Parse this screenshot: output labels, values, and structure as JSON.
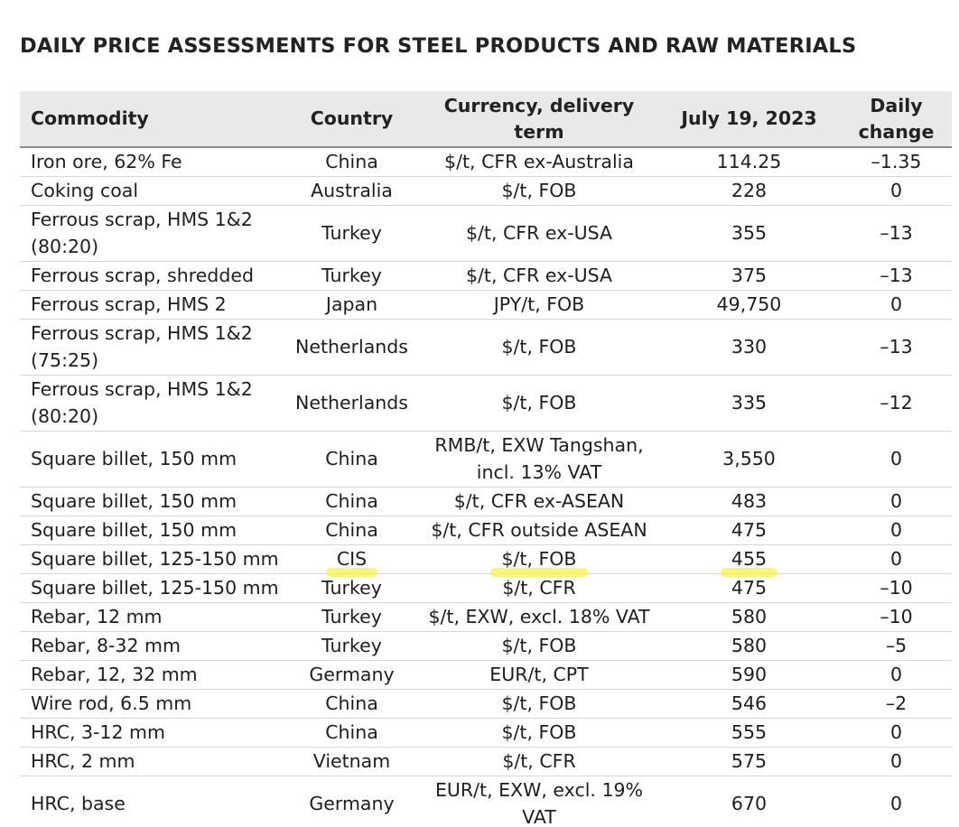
{
  "title": "DAILY PRICE ASSESSMENTS FOR STEEL PRODUCTS AND RAW MATERIALS",
  "highlight_color": "#f7f250",
  "header": {
    "commodity": "Commodity",
    "country": "Country",
    "currency": "Currency, delivery term",
    "date": "July 19, 2023",
    "change": "Daily change"
  },
  "rows": [
    {
      "commodity": "Iron ore, 62% Fe",
      "country": "China",
      "currency": "$/t, CFR ex-Australia",
      "price": "114.25",
      "change": "–1.35"
    },
    {
      "commodity": "Coking coal",
      "country": "Australia",
      "currency": "$/t, FOB",
      "price": "228",
      "change": "0"
    },
    {
      "commodity": "Ferrous scrap, HMS 1&2 (80:20)",
      "country": "Turkey",
      "currency": "$/t, CFR ex-USA",
      "price": "355",
      "change": "–13"
    },
    {
      "commodity": "Ferrous scrap, shredded",
      "country": "Turkey",
      "currency": "$/t, CFR ex-USA",
      "price": "375",
      "change": "–13"
    },
    {
      "commodity": "Ferrous scrap, HMS 2",
      "country": "Japan",
      "currency": "JPY/t, FOB",
      "price": "49,750",
      "change": "0"
    },
    {
      "commodity": "Ferrous scrap, HMS 1&2 (75:25)",
      "country": "Netherlands",
      "currency": "$/t, FOB",
      "price": "330",
      "change": "–13"
    },
    {
      "commodity": "Ferrous scrap, HMS 1&2 (80:20)",
      "country": "Netherlands",
      "currency": "$/t, FOB",
      "price": "335",
      "change": "–12"
    },
    {
      "commodity": "Square billet, 150 mm",
      "country": "China",
      "currency": "RMB/t, EXW Tangshan, incl. 13% VAT",
      "price": "3,550",
      "change": "0"
    },
    {
      "commodity": "Square billet, 150 mm",
      "country": "China",
      "currency": "$/t, CFR ex-ASEAN",
      "price": "483",
      "change": "0"
    },
    {
      "commodity": "Square billet, 150 mm",
      "country": "China",
      "currency": "$/t, CFR outside ASEAN",
      "price": "475",
      "change": "0"
    },
    {
      "commodity": "Square billet, 125-150 mm",
      "country": "CIS",
      "currency": "$/t, FOB",
      "price": "455",
      "change": "0"
    },
    {
      "commodity": "Square billet, 125-150 mm",
      "country": "Turkey",
      "currency": "$/t, CFR",
      "price": "475",
      "change": "–10"
    },
    {
      "commodity": "Rebar, 12 mm",
      "country": "Turkey",
      "currency": "$/t, EXW, excl. 18% VAT",
      "price": "580",
      "change": "–10"
    },
    {
      "commodity": "Rebar, 8-32 mm",
      "country": "Turkey",
      "currency": "$/t, FOB",
      "price": "580",
      "change": "–5"
    },
    {
      "commodity": "Rebar, 12, 32 mm",
      "country": "Germany",
      "currency": "EUR/t, CPT",
      "price": "590",
      "change": "0"
    },
    {
      "commodity": "Wire rod, 6.5 mm",
      "country": "China",
      "currency": "$/t, FOB",
      "price": "546",
      "change": "–2"
    },
    {
      "commodity": "HRC, 3-12 mm",
      "country": "China",
      "currency": "$/t, FOB",
      "price": "555",
      "change": "0"
    },
    {
      "commodity": "HRC, 2 mm",
      "country": "Vietnam",
      "currency": "$/t, CFR",
      "price": "575",
      "change": "0"
    },
    {
      "commodity": "HRC, base",
      "country": "Germany",
      "currency": "EUR/t, EXW, excl. 19% VAT",
      "price": "670",
      "change": "0"
    }
  ]
}
